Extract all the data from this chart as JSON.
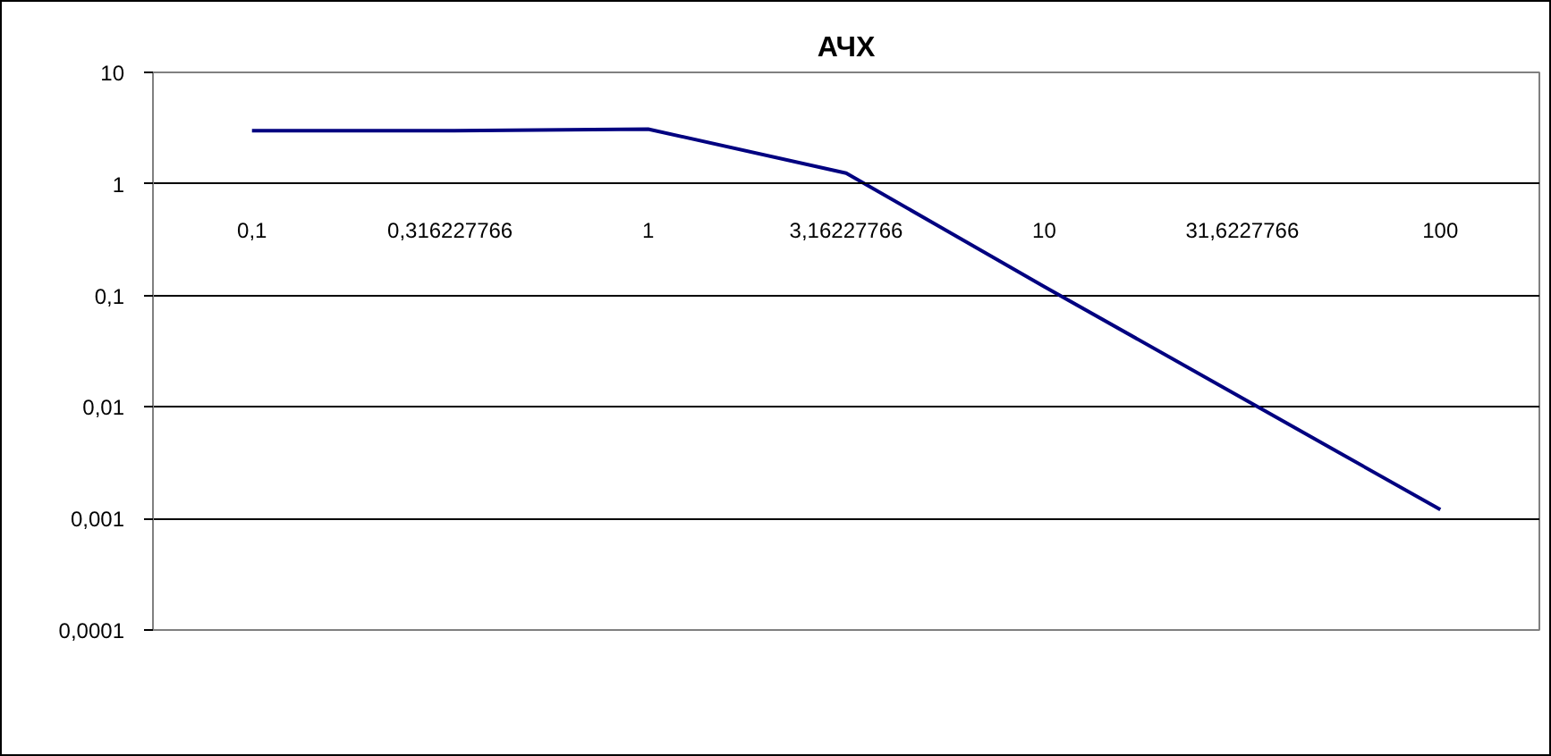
{
  "chart_data": {
    "type": "line",
    "title": "АЧХ",
    "categories": [
      "0,1",
      "0,316227766",
      "1",
      "3,16227766",
      "10",
      "31,6227766",
      "100"
    ],
    "series": [
      {
        "color": "#000080",
        "values": [
          3,
          3,
          3.1,
          1.25,
          0.12,
          0.012,
          0.0012
        ]
      }
    ],
    "log": "y",
    "ylim": [
      0.0001,
      10
    ],
    "yticks": [
      {
        "value": 0.0001,
        "label": "0,0001"
      },
      {
        "value": 0.001,
        "label": "0,001"
      },
      {
        "value": 0.01,
        "label": "0,01"
      },
      {
        "value": 0.1,
        "label": "0,1"
      },
      1,
      10
    ],
    "grid": "y",
    "line_style": "solid"
  }
}
